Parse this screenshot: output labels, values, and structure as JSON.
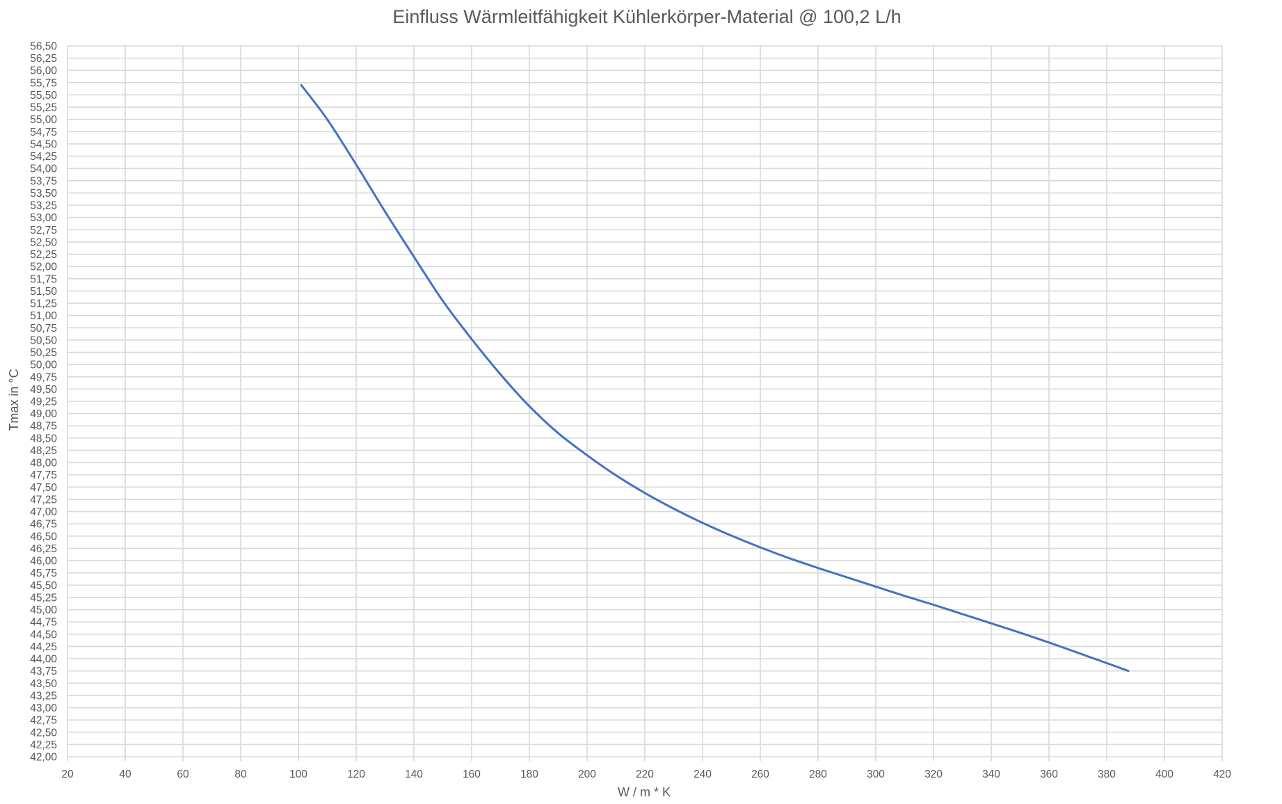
{
  "chart_data": {
    "type": "line",
    "title": "Einfluss Wärmleitfähigkeit Kühlerkörper-Material @ 100,2 L/h",
    "xlabel": "W / m * K",
    "ylabel": "Tmax in °C",
    "xlim": [
      20,
      420
    ],
    "ylim": [
      42,
      56.5
    ],
    "x_ticks": [
      20,
      40,
      60,
      80,
      100,
      120,
      140,
      160,
      180,
      200,
      220,
      240,
      260,
      280,
      300,
      320,
      340,
      360,
      380,
      400,
      420
    ],
    "y_tick_labels": [
      "42,00",
      "42,25",
      "42,50",
      "42,75",
      "43,00",
      "43,25",
      "43,50",
      "43,75",
      "44,00",
      "44,25",
      "44,50",
      "44,75",
      "45,00",
      "45,25",
      "45,50",
      "45,75",
      "46,00",
      "46,25",
      "46,50",
      "46,75",
      "47,00",
      "47,25",
      "47,50",
      "47,75",
      "48,00",
      "48,25",
      "48,50",
      "48,75",
      "49,00",
      "49,25",
      "49,50",
      "49,75",
      "50,00",
      "50,25",
      "50,50",
      "50,75",
      "51,00",
      "51,25",
      "51,50",
      "51,75",
      "52,00",
      "52,25",
      "52,50",
      "52,75",
      "53,00",
      "53,25",
      "53,50",
      "53,75",
      "54,00",
      "54,25",
      "54,50",
      "54,75",
      "55,00",
      "55,25",
      "55,50",
      "55,75",
      "56,00",
      "56,25",
      "56,50"
    ],
    "grid": true,
    "legend": "none",
    "colors": {
      "series": "#4472C4",
      "grid": "#D9D9D9",
      "text": "#595959"
    },
    "series": [
      {
        "x": [
          101,
          110,
          120,
          130,
          140,
          150,
          160,
          170,
          180,
          190,
          200,
          210,
          220,
          230,
          240,
          250,
          260,
          270,
          280,
          290,
          300,
          310,
          320,
          330,
          340,
          350,
          360,
          370,
          380,
          387.5
        ],
        "values": [
          55.7,
          55.0,
          54.08,
          53.12,
          52.2,
          51.3,
          50.52,
          49.8,
          49.15,
          48.6,
          48.15,
          47.74,
          47.38,
          47.06,
          46.77,
          46.51,
          46.27,
          46.05,
          45.85,
          45.66,
          45.47,
          45.28,
          45.1,
          44.91,
          44.72,
          44.53,
          44.33,
          44.12,
          43.91,
          43.75
        ]
      }
    ]
  }
}
